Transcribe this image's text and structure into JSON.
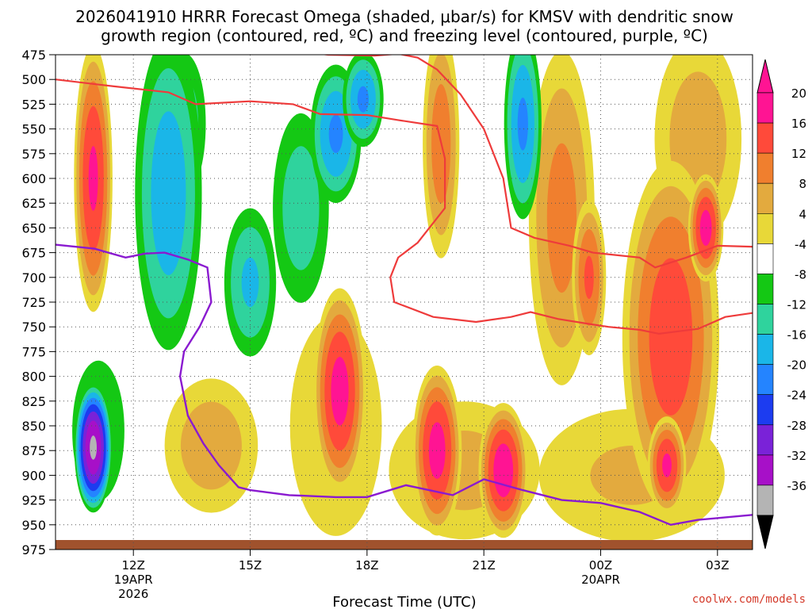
{
  "chart_data": {
    "type": "heatmap",
    "title_line1": "2026041910 HRRR Forecast Omega (shaded, μbar/s) for KMSV with dendritic snow",
    "title_line2": "growth region (contoured, red, ºC) and freezing level (contoured, purple, ºC)",
    "xlabel": "Forecast Time (UTC)",
    "ylabel": "",
    "y_ticks": [
      "475",
      "500",
      "525",
      "550",
      "575",
      "600",
      "625",
      "650",
      "675",
      "700",
      "725",
      "750",
      "775",
      "800",
      "825",
      "850",
      "875",
      "900",
      "925",
      "950",
      "975"
    ],
    "x_ticks": [
      {
        "label": "12Z",
        "sub1": "19APR",
        "sub2": "2026"
      },
      {
        "label": "15Z",
        "sub1": "",
        "sub2": ""
      },
      {
        "label": "18Z",
        "sub1": "",
        "sub2": ""
      },
      {
        "label": "21Z",
        "sub1": "",
        "sub2": ""
      },
      {
        "label": "00Z",
        "sub1": "20APR",
        "sub2": ""
      },
      {
        "label": "03Z",
        "sub1": "",
        "sub2": ""
      }
    ],
    "x_hours_range": [
      10.0,
      27.9
    ],
    "y_pressure_range": [
      475,
      975
    ],
    "colorbar": {
      "labels": [
        "20",
        "16",
        "12",
        "8",
        "4",
        "-4",
        "-8",
        "-12",
        "-16",
        "-20",
        "-24",
        "-28",
        "-32",
        "-36"
      ],
      "colors": [
        "#ff1493",
        "#ff4a3a",
        "#f07f2e",
        "#e3aa3e",
        "#e8d838",
        "#ffffff",
        "#14c814",
        "#2fd39d",
        "#1ab6e8",
        "#2484ff",
        "#1c3cf0",
        "#7a22d8",
        "#a710c8",
        "#b4b4b4"
      ]
    },
    "omega_blobs": [
      {
        "x": 10.97,
        "p": 600,
        "rx": 0.55,
        "ry": 150,
        "peak": 20
      },
      {
        "x": 10.97,
        "p": 872,
        "rx": 0.52,
        "ry": 70,
        "peak": -32
      },
      {
        "x": 11.1,
        "p": 855,
        "rx": 0.9,
        "ry": 95,
        "peak": -8
      },
      {
        "x": 12.9,
        "p": 615,
        "rx": 1.0,
        "ry": 185,
        "peak": -14
      },
      {
        "x": 13.3,
        "p": 545,
        "rx": 0.7,
        "ry": 90,
        "peak": -10
      },
      {
        "x": 15.0,
        "p": 705,
        "rx": 0.8,
        "ry": 90,
        "peak": -12
      },
      {
        "x": 16.3,
        "p": 630,
        "rx": 0.9,
        "ry": 120,
        "peak": -10
      },
      {
        "x": 17.2,
        "p": 555,
        "rx": 0.75,
        "ry": 80,
        "peak": -16
      },
      {
        "x": 17.9,
        "p": 520,
        "rx": 0.6,
        "ry": 55,
        "peak": -16
      },
      {
        "x": 22.0,
        "p": 545,
        "rx": 0.55,
        "ry": 110,
        "peak": -16
      },
      {
        "x": 13.3,
        "p": 545,
        "rx": 0.45,
        "ry": 60,
        "peak": 6
      },
      {
        "x": 19.9,
        "p": 565,
        "rx": 0.55,
        "ry": 135,
        "peak": 14
      },
      {
        "x": 14.0,
        "p": 870,
        "rx": 1.5,
        "ry": 85,
        "peak": 10
      },
      {
        "x": 17.3,
        "p": 815,
        "rx": 0.75,
        "ry": 115,
        "peak": 21
      },
      {
        "x": 17.2,
        "p": 850,
        "rx": 1.8,
        "ry": 170,
        "peak": 6
      },
      {
        "x": 19.8,
        "p": 875,
        "rx": 0.7,
        "ry": 95,
        "peak": 21
      },
      {
        "x": 21.5,
        "p": 895,
        "rx": 0.7,
        "ry": 75,
        "peak": 22
      },
      {
        "x": 20.5,
        "p": 895,
        "rx": 2.5,
        "ry": 90,
        "peak": 9
      },
      {
        "x": 23.0,
        "p": 640,
        "rx": 1.0,
        "ry": 200,
        "peak": 13
      },
      {
        "x": 23.7,
        "p": 700,
        "rx": 0.5,
        "ry": 90,
        "peak": 16
      },
      {
        "x": 25.8,
        "p": 760,
        "rx": 1.4,
        "ry": 200,
        "peak": 18
      },
      {
        "x": 26.7,
        "p": 650,
        "rx": 0.5,
        "ry": 60,
        "peak": 21
      },
      {
        "x": 25.7,
        "p": 890,
        "rx": 0.55,
        "ry": 55,
        "peak": 20
      },
      {
        "x": 26.5,
        "p": 560,
        "rx": 1.4,
        "ry": 130,
        "peak": 10
      },
      {
        "x": 24.8,
        "p": 900,
        "rx": 3.2,
        "ry": 90,
        "peak": 8
      }
    ],
    "dgz_lines": [
      [
        [
          10.0,
          500
        ],
        [
          11.5,
          507
        ],
        [
          12.9,
          513
        ],
        [
          13.6,
          525
        ],
        [
          15.0,
          522
        ],
        [
          16.1,
          525
        ],
        [
          16.8,
          535
        ],
        [
          18.0,
          536
        ],
        [
          18.8,
          541
        ],
        [
          19.8,
          547
        ],
        [
          20.0,
          580
        ],
        [
          20.0,
          630
        ],
        [
          19.3,
          665
        ],
        [
          18.8,
          680
        ],
        [
          18.6,
          700
        ],
        [
          18.7,
          725
        ],
        [
          19.7,
          740
        ],
        [
          20.8,
          745
        ],
        [
          21.7,
          740
        ],
        [
          22.2,
          735
        ],
        [
          22.9,
          742
        ],
        [
          23.7,
          747
        ],
        [
          24.2,
          750
        ],
        [
          25.0,
          753
        ],
        [
          25.5,
          757
        ],
        [
          26.5,
          752
        ],
        [
          27.2,
          740
        ],
        [
          27.9,
          736
        ]
      ],
      [
        [
          16.0,
          470
        ],
        [
          17.0,
          475
        ],
        [
          18.2,
          476
        ],
        [
          18.8,
          474
        ],
        [
          19.3,
          478
        ],
        [
          19.8,
          490
        ],
        [
          20.4,
          515
        ],
        [
          21.0,
          550
        ],
        [
          21.5,
          600
        ],
        [
          21.7,
          650
        ],
        [
          22.3,
          660
        ],
        [
          23.2,
          668
        ],
        [
          23.8,
          675
        ],
        [
          25.0,
          680
        ],
        [
          25.4,
          690
        ],
        [
          26.2,
          680
        ],
        [
          27.0,
          668
        ],
        [
          27.9,
          669
        ]
      ]
    ],
    "freezing_level": [
      [
        10.0,
        667
      ],
      [
        11.0,
        671
      ],
      [
        11.8,
        680
      ],
      [
        12.3,
        676
      ],
      [
        12.8,
        675
      ],
      [
        13.4,
        682
      ],
      [
        13.9,
        690
      ],
      [
        14.0,
        725
      ],
      [
        13.7,
        750
      ],
      [
        13.3,
        775
      ],
      [
        13.2,
        800
      ],
      [
        13.4,
        840
      ],
      [
        13.8,
        868
      ],
      [
        14.2,
        890
      ],
      [
        14.7,
        912
      ],
      [
        15.0,
        915
      ],
      [
        16.0,
        920
      ],
      [
        17.2,
        922
      ],
      [
        18.0,
        922
      ],
      [
        19.0,
        910
      ],
      [
        20.2,
        920
      ],
      [
        21.0,
        904
      ],
      [
        22.0,
        915
      ],
      [
        23.0,
        925
      ],
      [
        24.0,
        928
      ],
      [
        25.0,
        937
      ],
      [
        25.8,
        950
      ],
      [
        26.5,
        945
      ],
      [
        27.9,
        940
      ]
    ],
    "watermark": "coolwx.com/models"
  }
}
